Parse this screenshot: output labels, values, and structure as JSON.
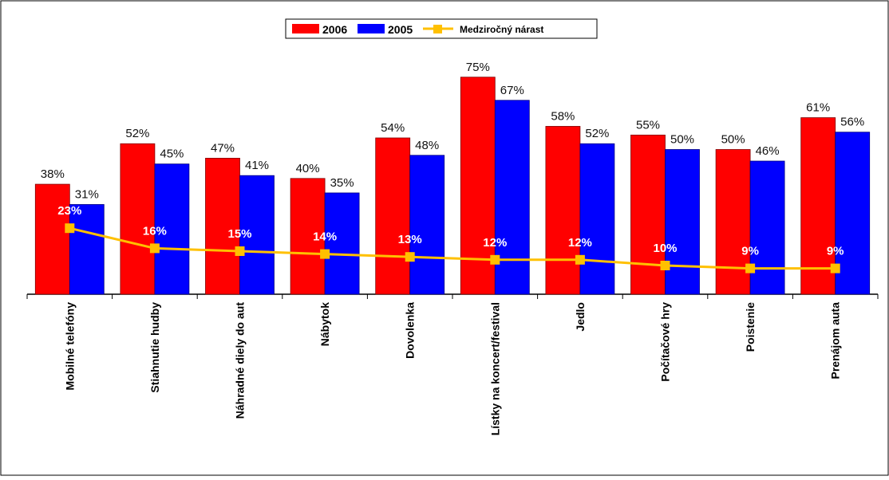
{
  "chart_data": {
    "type": "bar",
    "categories": [
      "Mobilné telefóny",
      "Stiahnutie hudby",
      "Náhradné diely do aut",
      "Nábytok",
      "Dovolenka",
      "Lístky na koncert/festival",
      "Jedlo",
      "Počítačové hry",
      "Poistenie",
      "Prenájom auta"
    ],
    "series": [
      {
        "name": "2006",
        "type": "bar",
        "color": "#ff0000",
        "values": [
          38,
          52,
          47,
          40,
          54,
          75,
          58,
          55,
          50,
          61
        ],
        "labels": [
          "38%",
          "52%",
          "47%",
          "40%",
          "54%",
          "75%",
          "58%",
          "55%",
          "50%",
          "61%"
        ]
      },
      {
        "name": "2005",
        "type": "bar",
        "color": "#0000ff",
        "values": [
          31,
          45,
          41,
          35,
          48,
          67,
          52,
          50,
          46,
          56
        ],
        "labels": [
          "31%",
          "45%",
          "41%",
          "35%",
          "48%",
          "67%",
          "52%",
          "50%",
          "46%",
          "56%"
        ]
      },
      {
        "name": "Medziročný nárast",
        "type": "line",
        "color": "#ffc000",
        "values": [
          23,
          16,
          15,
          14,
          13,
          12,
          12,
          10,
          9,
          9
        ],
        "labels": [
          "23%",
          "16%",
          "15%",
          "14%",
          "13%",
          "12%",
          "12%",
          "10%",
          "9%",
          "9%"
        ]
      }
    ],
    "title": "",
    "xlabel": "",
    "ylabel": "",
    "ylim": [
      0,
      100
    ],
    "grid": false,
    "legend_position": "top-center"
  }
}
